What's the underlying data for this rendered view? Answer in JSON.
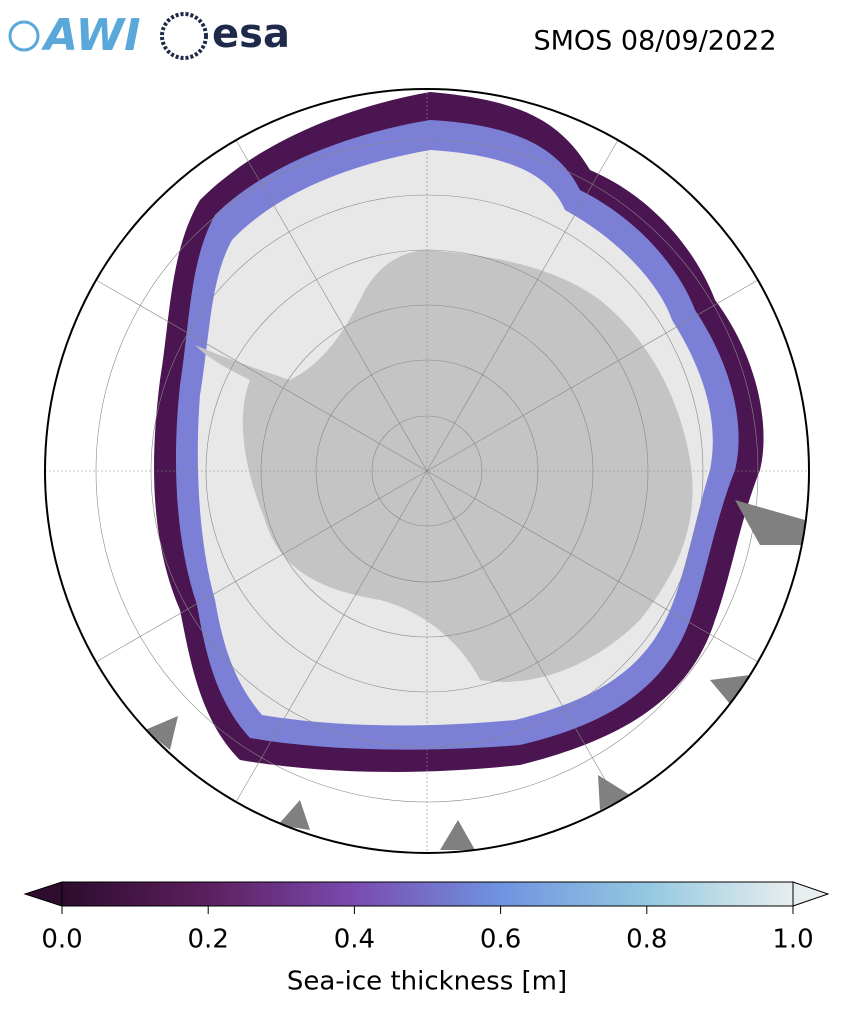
{
  "logos": [
    "AWI",
    "esa"
  ],
  "title": "SMOS 08/09/2022",
  "colorbar": {
    "label": "Sea-ice thickness [m]",
    "lim": [
      0,
      1
    ],
    "ticks": [
      {
        "value": 0,
        "label": "0.0"
      },
      0.2,
      0.4,
      0.6,
      0.8,
      {
        "value": 1,
        "label": "1.0"
      }
    ],
    "colors": [
      "#2d0c2e",
      "#5c1f5e",
      "#7a4bb0",
      "#6f93e0",
      "#93c8e0",
      "#e8eeee"
    ]
  }
}
